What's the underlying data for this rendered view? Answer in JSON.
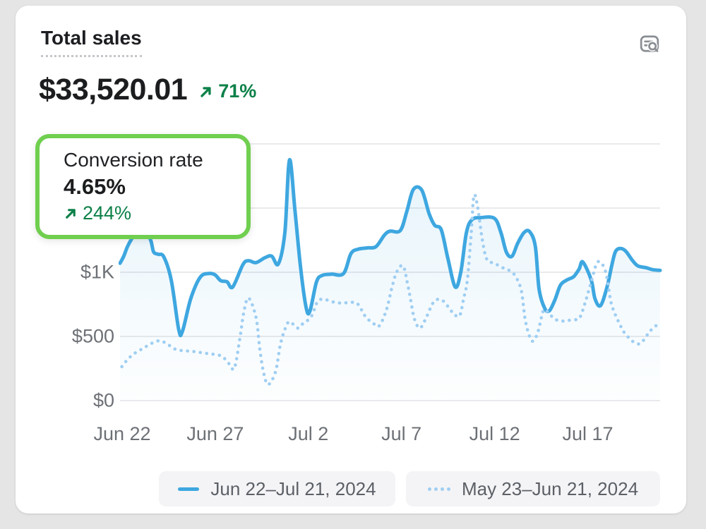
{
  "card": {
    "title": "Total sales",
    "metric": {
      "value": "$33,520.01",
      "delta": "71%",
      "delta_direction": "up"
    },
    "report_icon": "magnifier-list-icon"
  },
  "tooltip": {
    "title": "Conversion rate",
    "value": "4.65%",
    "delta": "244%",
    "delta_direction": "up"
  },
  "legend": [
    {
      "label": "Jun 22–Jul 21, 2024",
      "marker": "solid-line"
    },
    {
      "label": "May 23–Jun 21, 2024",
      "marker": "dotted-line"
    }
  ],
  "colors": {
    "accent_green": "#0c8048",
    "tooltip_border_green": "#70cf4f",
    "line_current": "#3ea7e0",
    "line_previous": "#9fcef2",
    "gridline": "#e9eaec",
    "axis_text": "#6d7176",
    "background": "#e5e5e6"
  },
  "chart_data": {
    "type": "line",
    "title": "Total sales",
    "xlabel": "",
    "ylabel": "",
    "ylim": [
      0,
      2090
    ],
    "grid": "horizontal",
    "gridline_values": [
      0,
      500,
      1000,
      1500,
      2000
    ],
    "y_ticks": [
      {
        "value": 0,
        "label": "$0"
      },
      {
        "value": 500,
        "label": "$500"
      },
      {
        "value": 1000,
        "label": "$1K"
      }
    ],
    "x_ticks": [
      {
        "day": 0,
        "label": "Jun 22"
      },
      {
        "day": 5,
        "label": "Jun 27"
      },
      {
        "day": 10,
        "label": "Jul 2"
      },
      {
        "day": 15,
        "label": "Jul 7"
      },
      {
        "day": 20,
        "label": "Jul 12"
      },
      {
        "day": 25,
        "label": "Jul 17"
      }
    ],
    "x_range_days": [
      0,
      29
    ],
    "legend_position": "bottom",
    "series": [
      {
        "name": "Jun 22–Jul 21, 2024",
        "style": "solid",
        "color": "#3ea7e0",
        "points": [
          [
            0,
            1070
          ],
          [
            0.2,
            1125
          ],
          [
            0.4,
            1200
          ],
          [
            0.65,
            1265
          ],
          [
            1.05,
            1340
          ],
          [
            1.6,
            1265
          ],
          [
            1.8,
            1160
          ],
          [
            2.05,
            1140
          ],
          [
            2.35,
            1120
          ],
          [
            2.75,
            940
          ],
          [
            3.15,
            555
          ],
          [
            3.35,
            540
          ],
          [
            3.8,
            795
          ],
          [
            4.3,
            960
          ],
          [
            4.75,
            990
          ],
          [
            5.1,
            980
          ],
          [
            5.4,
            935
          ],
          [
            5.75,
            925
          ],
          [
            6.05,
            885
          ],
          [
            6.6,
            1060
          ],
          [
            6.9,
            1090
          ],
          [
            7.3,
            1075
          ],
          [
            7.8,
            1115
          ],
          [
            8.15,
            1125
          ],
          [
            8.5,
            1065
          ],
          [
            8.85,
            1310
          ],
          [
            9.1,
            1875
          ],
          [
            9.4,
            1470
          ],
          [
            9.7,
            1030
          ],
          [
            10,
            720
          ],
          [
            10.2,
            700
          ],
          [
            10.55,
            925
          ],
          [
            10.85,
            975
          ],
          [
            11.35,
            985
          ],
          [
            12,
            990
          ],
          [
            12.4,
            1145
          ],
          [
            12.8,
            1180
          ],
          [
            13.3,
            1190
          ],
          [
            13.75,
            1200
          ],
          [
            14.2,
            1290
          ],
          [
            14.5,
            1320
          ],
          [
            15.05,
            1325
          ],
          [
            15.4,
            1475
          ],
          [
            15.75,
            1645
          ],
          [
            16.2,
            1640
          ],
          [
            16.6,
            1455
          ],
          [
            16.9,
            1365
          ],
          [
            17.25,
            1330
          ],
          [
            17.6,
            1110
          ],
          [
            18,
            885
          ],
          [
            18.3,
            1005
          ],
          [
            18.6,
            1310
          ],
          [
            18.9,
            1410
          ],
          [
            19.35,
            1425
          ],
          [
            20.1,
            1420
          ],
          [
            20.45,
            1310
          ],
          [
            20.75,
            1155
          ],
          [
            21.05,
            1125
          ],
          [
            21.35,
            1225
          ],
          [
            21.7,
            1310
          ],
          [
            22,
            1315
          ],
          [
            22.3,
            1200
          ],
          [
            22.5,
            870
          ],
          [
            22.8,
            720
          ],
          [
            23.05,
            700
          ],
          [
            23.35,
            785
          ],
          [
            23.65,
            900
          ],
          [
            24,
            940
          ],
          [
            24.35,
            965
          ],
          [
            24.65,
            1025
          ],
          [
            24.85,
            1080
          ],
          [
            25.3,
            940
          ],
          [
            25.5,
            795
          ],
          [
            25.8,
            740
          ],
          [
            26.15,
            885
          ],
          [
            26.4,
            1050
          ],
          [
            26.6,
            1160
          ],
          [
            26.85,
            1185
          ],
          [
            27.15,
            1165
          ],
          [
            27.5,
            1095
          ],
          [
            27.8,
            1050
          ],
          [
            28.25,
            1035
          ],
          [
            28.6,
            1020
          ],
          [
            29,
            1015
          ]
        ]
      },
      {
        "name": "May 23–Jun 21, 2024",
        "style": "dotted",
        "color": "#9fcef2",
        "points": [
          [
            0.1,
            265
          ],
          [
            0.4,
            320
          ],
          [
            0.75,
            365
          ],
          [
            1.15,
            400
          ],
          [
            1.5,
            430
          ],
          [
            1.9,
            460
          ],
          [
            2.2,
            465
          ],
          [
            2.55,
            440
          ],
          [
            2.9,
            405
          ],
          [
            3.3,
            390
          ],
          [
            3.8,
            385
          ],
          [
            4.3,
            375
          ],
          [
            4.8,
            365
          ],
          [
            5.3,
            355
          ],
          [
            5.6,
            330
          ],
          [
            5.9,
            280
          ],
          [
            6.15,
            255
          ],
          [
            6.45,
            500
          ],
          [
            6.65,
            690
          ],
          [
            6.9,
            800
          ],
          [
            7.3,
            650
          ],
          [
            7.5,
            410
          ],
          [
            7.7,
            225
          ],
          [
            7.95,
            125
          ],
          [
            8.35,
            225
          ],
          [
            8.6,
            430
          ],
          [
            8.85,
            555
          ],
          [
            9.1,
            615
          ],
          [
            9.55,
            565
          ],
          [
            9.85,
            605
          ],
          [
            10.25,
            650
          ],
          [
            10.6,
            770
          ],
          [
            10.9,
            790
          ],
          [
            11.2,
            780
          ],
          [
            11.55,
            765
          ],
          [
            11.95,
            760
          ],
          [
            12.35,
            765
          ],
          [
            12.75,
            755
          ],
          [
            13.2,
            650
          ],
          [
            13.55,
            610
          ],
          [
            13.9,
            580
          ],
          [
            14.3,
            705
          ],
          [
            14.6,
            880
          ],
          [
            14.85,
            1000
          ],
          [
            15.2,
            1050
          ],
          [
            15.45,
            900
          ],
          [
            15.6,
            790
          ],
          [
            15.8,
            640
          ],
          [
            16.1,
            565
          ],
          [
            16.45,
            650
          ],
          [
            16.8,
            760
          ],
          [
            17.1,
            790
          ],
          [
            17.4,
            770
          ],
          [
            17.75,
            705
          ],
          [
            18,
            665
          ],
          [
            18.25,
            665
          ],
          [
            18.45,
            795
          ],
          [
            18.65,
            940
          ],
          [
            18.85,
            1290
          ],
          [
            19,
            1595
          ],
          [
            19.2,
            1510
          ],
          [
            19.45,
            1255
          ],
          [
            19.7,
            1100
          ],
          [
            20.1,
            1070
          ],
          [
            20.55,
            1035
          ],
          [
            20.95,
            1010
          ],
          [
            21.25,
            965
          ],
          [
            21.55,
            855
          ],
          [
            21.75,
            635
          ],
          [
            22,
            495
          ],
          [
            22.2,
            465
          ],
          [
            22.45,
            540
          ],
          [
            22.75,
            705
          ],
          [
            23.05,
            675
          ],
          [
            23.35,
            635
          ],
          [
            23.7,
            620
          ],
          [
            24.05,
            625
          ],
          [
            24.45,
            630
          ],
          [
            24.7,
            650
          ],
          [
            25,
            775
          ],
          [
            25.3,
            925
          ],
          [
            25.6,
            1070
          ],
          [
            25.85,
            1070
          ],
          [
            26.1,
            990
          ],
          [
            26.35,
            775
          ],
          [
            26.55,
            685
          ],
          [
            26.8,
            605
          ],
          [
            27.05,
            535
          ],
          [
            27.35,
            485
          ],
          [
            27.65,
            450
          ],
          [
            27.95,
            445
          ],
          [
            28.25,
            500
          ],
          [
            28.45,
            540
          ],
          [
            28.75,
            580
          ],
          [
            29,
            610
          ]
        ]
      }
    ]
  }
}
